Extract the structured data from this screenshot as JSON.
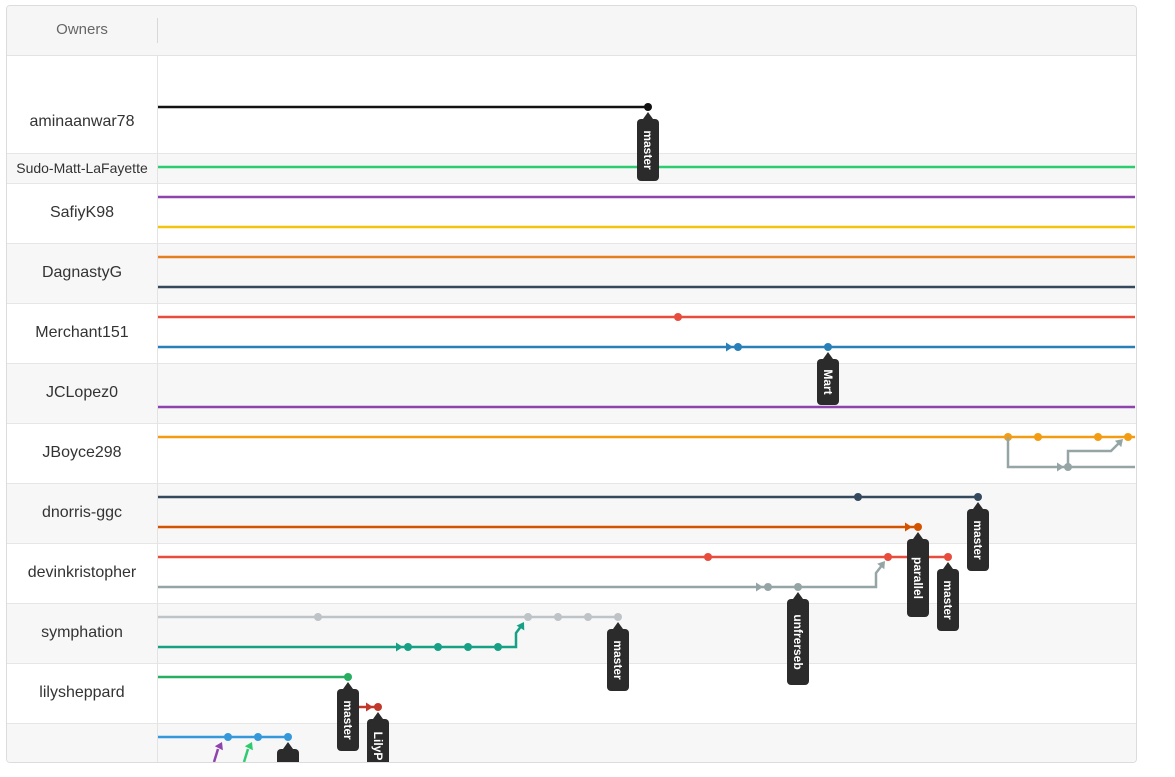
{
  "header": {
    "owners_label": "Owners"
  },
  "owners": [
    "aminaanwar78",
    "Sudo-Matt-LaFayette",
    "SafiyK98",
    "DagnastyG",
    "Merchant151",
    "JCLopez0",
    "JBoyce298",
    "dnorris-ggc",
    "devinkristopher",
    "symphation",
    "lilysheppard",
    ""
  ],
  "branch_tags": {
    "amina_master": "master",
    "merchant_mart": "Mart",
    "dnorris_master": "master",
    "dnorris_parallel": "parallel",
    "devin_master": "master",
    "devin_unfrerseb": "unfrerseb",
    "symph_master": "master",
    "lily_master": "master",
    "lily_lilyp": "LilyP"
  },
  "colors": {
    "black": "#111111",
    "green": "#2ecc71",
    "purple": "#8e44ad",
    "yellow": "#f1c40f",
    "orange": "#e67e22",
    "navy": "#34495e",
    "red": "#e74c3c",
    "blue": "#2980b9",
    "amber": "#f39c12",
    "gray": "#95a5a6",
    "darkorange": "#d35400",
    "silver": "#bdc3c7",
    "teal": "#16a085",
    "emerald": "#27ae60",
    "crimson": "#c0392b",
    "sky": "#3498db",
    "tag_bg": "#2b2b2b",
    "tag_text": "#ffffff"
  }
}
